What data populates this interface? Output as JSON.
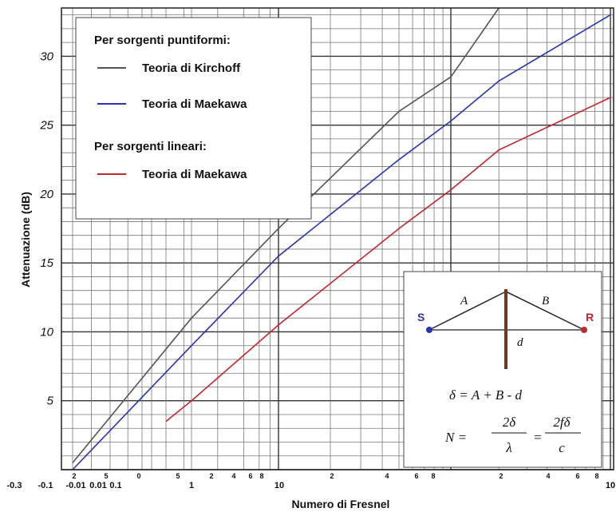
{
  "chart_data": {
    "type": "line",
    "xlabel": "Numero di Fresnel",
    "ylabel": "Attenuazione (dB)",
    "ylim": [
      0,
      33.5
    ],
    "x_scale": "log (N+1 folded for N<0.3)",
    "y_ticks": [
      5,
      10,
      15,
      20,
      25,
      30
    ],
    "x_tick_labels": [
      {
        "label": "-0.3",
        "major": true
      },
      {
        "label": "-0.1",
        "major": true
      },
      {
        "label": "-0.01",
        "major": true
      },
      {
        "label": "0.01",
        "major": true
      },
      {
        "label": "0.1",
        "major": true
      },
      {
        "label": "1",
        "major": true
      },
      {
        "label": "10",
        "major": true
      },
      {
        "label": "10",
        "major": true
      },
      {
        "label": "2",
        "major": false
      },
      {
        "label": "5",
        "major": false
      },
      {
        "label": "0",
        "major": false
      },
      {
        "label": "5",
        "major": false
      },
      {
        "label": "2",
        "major": false
      },
      {
        "label": "4",
        "major": false
      },
      {
        "label": "6",
        "major": false
      },
      {
        "label": "8",
        "major": false
      },
      {
        "label": "2",
        "major": false
      },
      {
        "label": "4",
        "major": false
      },
      {
        "label": "6",
        "major": false
      },
      {
        "label": "8",
        "major": false
      },
      {
        "label": "2",
        "major": false
      },
      {
        "label": "4",
        "major": false
      },
      {
        "label": "6",
        "major": false
      },
      {
        "label": "8",
        "major": false
      }
    ],
    "grid": true,
    "legend": {
      "heading_point": "Per sorgenti puntiformi:",
      "heading_line": "Per sorgenti lineari:",
      "items": [
        {
          "label": "Teoria di Kirchoff",
          "color": "#555555"
        },
        {
          "label": "Teoria di Maekawa",
          "color": "#2a33b0"
        },
        {
          "label": "Teoria di Maekawa",
          "color": "#c0272d"
        }
      ],
      "placement": "top-left"
    },
    "series": [
      {
        "color": "#555555",
        "points": [
          [
            -0.3,
            0.5
          ],
          [
            0.1,
            11
          ],
          [
            1,
            17.5
          ],
          [
            5,
            26
          ],
          [
            10,
            28.5
          ],
          [
            20,
            33.5
          ]
        ]
      },
      {
        "color": "#2a33b0",
        "points": [
          [
            -0.3,
            0
          ],
          [
            0.1,
            9
          ],
          [
            1,
            15.5
          ],
          [
            5,
            22.5
          ],
          [
            10,
            25.3
          ],
          [
            20,
            28.2
          ],
          [
            100,
            33
          ]
        ]
      },
      {
        "color": "#c0272d",
        "points": [
          [
            0.01,
            3.5
          ],
          [
            0.1,
            5
          ],
          [
            1,
            10.5
          ],
          [
            5,
            17.5
          ],
          [
            10,
            20.3
          ],
          [
            20,
            23.2
          ],
          [
            100,
            27
          ]
        ]
      }
    ],
    "inset": {
      "source_label": "S",
      "receiver_label": "R",
      "path_a": "A",
      "path_b": "B",
      "direct": "d",
      "formula_delta": "δ = A + B - d",
      "formula_n": "N =",
      "frac1_num": "2δ",
      "frac1_den": "λ",
      "eq": "=",
      "frac2_num": "2fδ",
      "frac2_den": "c",
      "colors": {
        "source": "#2a33b0",
        "receiver": "#c0272d"
      }
    }
  }
}
